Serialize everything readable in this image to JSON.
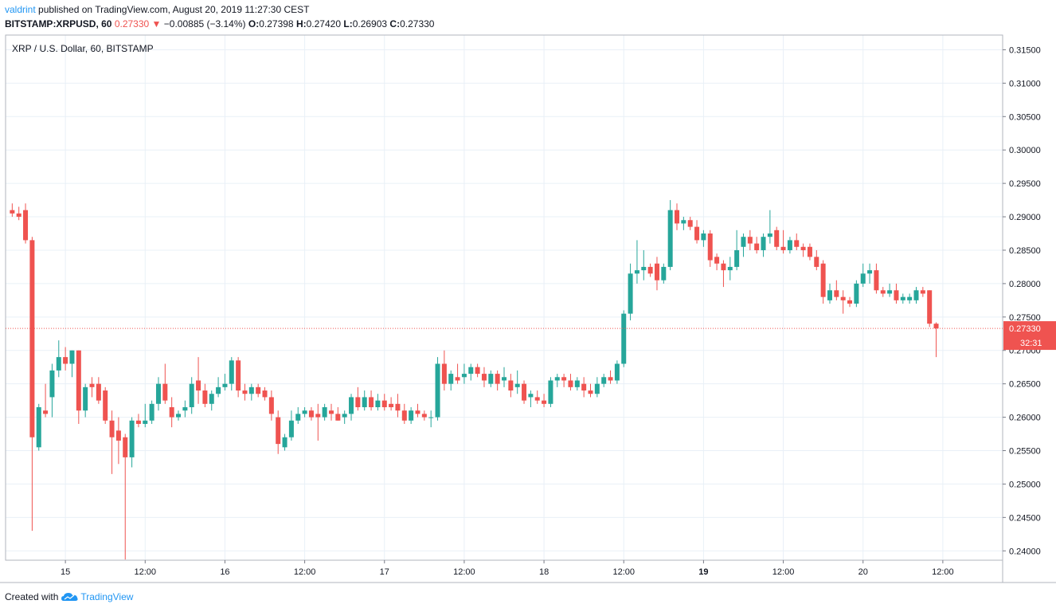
{
  "header": {
    "author": "valdrint",
    "published_text": "published on TradingView.com, August 20, 2019 11:27:30 CEST",
    "symbol": "BITSTAMP:XRPUSD, 60",
    "last": "0.27330",
    "change": "−0.00885 (−3.14%)",
    "o_label": "O:",
    "o_value": "0.27398",
    "h_label": "H:",
    "h_value": "0.27420",
    "l_label": "L:",
    "l_value": "0.26903",
    "c_label": "C:",
    "c_value": "0.27330"
  },
  "footer": {
    "created_with": "Created with",
    "brand": "TradingView"
  },
  "colors": {
    "up": "#26a69a",
    "down": "#ef5350",
    "grid": "#e9f0f7",
    "text": "#131722"
  },
  "chart_data": {
    "type": "candlestick",
    "title": "XRP / U.S. Dollar, 60, BITSTAMP",
    "y_ticks": [
      "0.24000",
      "0.24500",
      "0.25000",
      "0.25500",
      "0.26000",
      "0.26500",
      "0.27000",
      "0.27500",
      "0.28000",
      "0.28500",
      "0.29000",
      "0.29500",
      "0.30000",
      "0.30500",
      "0.31000",
      "0.31500"
    ],
    "ylim": [
      0.2386,
      0.3172
    ],
    "x_ticks": [
      {
        "label": "15",
        "t": 0,
        "bold": false
      },
      {
        "label": "12:00",
        "t": 12,
        "bold": false
      },
      {
        "label": "16",
        "t": 24,
        "bold": false
      },
      {
        "label": "12:00",
        "t": 36,
        "bold": false
      },
      {
        "label": "17",
        "t": 48,
        "bold": false
      },
      {
        "label": "12:00",
        "t": 60,
        "bold": false
      },
      {
        "label": "18",
        "t": 72,
        "bold": false
      },
      {
        "label": "12:00",
        "t": 84,
        "bold": false
      },
      {
        "label": "19",
        "t": 96,
        "bold": true
      },
      {
        "label": "12:00",
        "t": 108,
        "bold": false
      },
      {
        "label": "20",
        "t": 120,
        "bold": false
      },
      {
        "label": "12:00",
        "t": 132,
        "bold": false
      }
    ],
    "xlim": [
      -9,
      141
    ],
    "last_price_label": "0.27330",
    "last_price": 0.2733,
    "countdown": "32:31",
    "candles": [
      {
        "t": -8,
        "o": 0.291,
        "h": 0.292,
        "l": 0.29,
        "c": 0.2905
      },
      {
        "t": -7,
        "o": 0.2905,
        "h": 0.2915,
        "l": 0.2895,
        "c": 0.29
      },
      {
        "t": -6,
        "o": 0.291,
        "h": 0.292,
        "l": 0.286,
        "c": 0.2865
      },
      {
        "t": -5,
        "o": 0.2865,
        "h": 0.287,
        "l": 0.243,
        "c": 0.257
      },
      {
        "t": -4,
        "o": 0.2555,
        "h": 0.262,
        "l": 0.255,
        "c": 0.2615
      },
      {
        "t": -3,
        "o": 0.261,
        "h": 0.265,
        "l": 0.26,
        "c": 0.2605
      },
      {
        "t": -2,
        "o": 0.263,
        "h": 0.268,
        "l": 0.26,
        "c": 0.267
      },
      {
        "t": -1,
        "o": 0.267,
        "h": 0.2715,
        "l": 0.266,
        "c": 0.269
      },
      {
        "t": 0,
        "o": 0.269,
        "h": 0.2705,
        "l": 0.267,
        "c": 0.268
      },
      {
        "t": 1,
        "o": 0.268,
        "h": 0.27,
        "l": 0.266,
        "c": 0.27
      },
      {
        "t": 2,
        "o": 0.27,
        "h": 0.27,
        "l": 0.259,
        "c": 0.261
      },
      {
        "t": 3,
        "o": 0.261,
        "h": 0.265,
        "l": 0.26,
        "c": 0.2645
      },
      {
        "t": 4,
        "o": 0.265,
        "h": 0.266,
        "l": 0.263,
        "c": 0.2645
      },
      {
        "t": 5,
        "o": 0.265,
        "h": 0.266,
        "l": 0.262,
        "c": 0.2625
      },
      {
        "t": 6,
        "o": 0.264,
        "h": 0.2645,
        "l": 0.259,
        "c": 0.2595
      },
      {
        "t": 7,
        "o": 0.2595,
        "h": 0.261,
        "l": 0.2515,
        "c": 0.257
      },
      {
        "t": 8,
        "o": 0.258,
        "h": 0.26,
        "l": 0.253,
        "c": 0.2565
      },
      {
        "t": 9,
        "o": 0.257,
        "h": 0.2575,
        "l": 0.2387,
        "c": 0.254
      },
      {
        "t": 10,
        "o": 0.254,
        "h": 0.26,
        "l": 0.2525,
        "c": 0.2595
      },
      {
        "t": 11,
        "o": 0.2595,
        "h": 0.2605,
        "l": 0.2585,
        "c": 0.259
      },
      {
        "t": 12,
        "o": 0.259,
        "h": 0.262,
        "l": 0.2585,
        "c": 0.2595
      },
      {
        "t": 13,
        "o": 0.2595,
        "h": 0.2625,
        "l": 0.259,
        "c": 0.262
      },
      {
        "t": 14,
        "o": 0.262,
        "h": 0.266,
        "l": 0.261,
        "c": 0.265
      },
      {
        "t": 15,
        "o": 0.265,
        "h": 0.268,
        "l": 0.262,
        "c": 0.2625
      },
      {
        "t": 16,
        "o": 0.2615,
        "h": 0.263,
        "l": 0.2585,
        "c": 0.26
      },
      {
        "t": 17,
        "o": 0.26,
        "h": 0.261,
        "l": 0.2595,
        "c": 0.2605
      },
      {
        "t": 18,
        "o": 0.261,
        "h": 0.2625,
        "l": 0.26,
        "c": 0.2615
      },
      {
        "t": 19,
        "o": 0.2615,
        "h": 0.266,
        "l": 0.2605,
        "c": 0.265
      },
      {
        "t": 20,
        "o": 0.2655,
        "h": 0.269,
        "l": 0.262,
        "c": 0.264
      },
      {
        "t": 21,
        "o": 0.264,
        "h": 0.265,
        "l": 0.2615,
        "c": 0.262
      },
      {
        "t": 22,
        "o": 0.262,
        "h": 0.264,
        "l": 0.261,
        "c": 0.2635
      },
      {
        "t": 23,
        "o": 0.2635,
        "h": 0.266,
        "l": 0.263,
        "c": 0.2645
      },
      {
        "t": 24,
        "o": 0.2645,
        "h": 0.2665,
        "l": 0.264,
        "c": 0.265
      },
      {
        "t": 25,
        "o": 0.265,
        "h": 0.269,
        "l": 0.264,
        "c": 0.2685
      },
      {
        "t": 26,
        "o": 0.2685,
        "h": 0.269,
        "l": 0.263,
        "c": 0.264
      },
      {
        "t": 27,
        "o": 0.264,
        "h": 0.265,
        "l": 0.2625,
        "c": 0.2635
      },
      {
        "t": 28,
        "o": 0.2635,
        "h": 0.265,
        "l": 0.2625,
        "c": 0.2645
      },
      {
        "t": 29,
        "o": 0.2645,
        "h": 0.265,
        "l": 0.263,
        "c": 0.2635
      },
      {
        "t": 30,
        "o": 0.264,
        "h": 0.2645,
        "l": 0.2625,
        "c": 0.263
      },
      {
        "t": 31,
        "o": 0.263,
        "h": 0.264,
        "l": 0.2595,
        "c": 0.2605
      },
      {
        "t": 32,
        "o": 0.26,
        "h": 0.261,
        "l": 0.2545,
        "c": 0.256
      },
      {
        "t": 33,
        "o": 0.2555,
        "h": 0.2575,
        "l": 0.255,
        "c": 0.257
      },
      {
        "t": 34,
        "o": 0.257,
        "h": 0.261,
        "l": 0.2565,
        "c": 0.2595
      },
      {
        "t": 35,
        "o": 0.2595,
        "h": 0.2615,
        "l": 0.259,
        "c": 0.2605
      },
      {
        "t": 36,
        "o": 0.2605,
        "h": 0.2615,
        "l": 0.26,
        "c": 0.261
      },
      {
        "t": 37,
        "o": 0.261,
        "h": 0.2615,
        "l": 0.2595,
        "c": 0.26
      },
      {
        "t": 38,
        "o": 0.2605,
        "h": 0.262,
        "l": 0.2565,
        "c": 0.26
      },
      {
        "t": 39,
        "o": 0.26,
        "h": 0.262,
        "l": 0.2595,
        "c": 0.2615
      },
      {
        "t": 40,
        "o": 0.261,
        "h": 0.262,
        "l": 0.2595,
        "c": 0.2605
      },
      {
        "t": 41,
        "o": 0.2605,
        "h": 0.2615,
        "l": 0.2595,
        "c": 0.2595
      },
      {
        "t": 42,
        "o": 0.26,
        "h": 0.261,
        "l": 0.259,
        "c": 0.2605
      },
      {
        "t": 43,
        "o": 0.2605,
        "h": 0.2635,
        "l": 0.2595,
        "c": 0.263
      },
      {
        "t": 44,
        "o": 0.263,
        "h": 0.2645,
        "l": 0.261,
        "c": 0.2615
      },
      {
        "t": 45,
        "o": 0.2615,
        "h": 0.264,
        "l": 0.261,
        "c": 0.263
      },
      {
        "t": 46,
        "o": 0.263,
        "h": 0.264,
        "l": 0.261,
        "c": 0.2615
      },
      {
        "t": 47,
        "o": 0.2615,
        "h": 0.2635,
        "l": 0.261,
        "c": 0.2625
      },
      {
        "t": 48,
        "o": 0.2625,
        "h": 0.2635,
        "l": 0.261,
        "c": 0.2615
      },
      {
        "t": 49,
        "o": 0.262,
        "h": 0.263,
        "l": 0.261,
        "c": 0.2615
      },
      {
        "t": 50,
        "o": 0.262,
        "h": 0.2635,
        "l": 0.26,
        "c": 0.261
      },
      {
        "t": 51,
        "o": 0.261,
        "h": 0.262,
        "l": 0.259,
        "c": 0.2595
      },
      {
        "t": 52,
        "o": 0.2595,
        "h": 0.2615,
        "l": 0.259,
        "c": 0.261
      },
      {
        "t": 53,
        "o": 0.261,
        "h": 0.262,
        "l": 0.26,
        "c": 0.2605
      },
      {
        "t": 54,
        "o": 0.2605,
        "h": 0.261,
        "l": 0.2595,
        "c": 0.26
      },
      {
        "t": 55,
        "o": 0.26,
        "h": 0.261,
        "l": 0.2585,
        "c": 0.26
      },
      {
        "t": 56,
        "o": 0.26,
        "h": 0.269,
        "l": 0.2595,
        "c": 0.268
      },
      {
        "t": 57,
        "o": 0.268,
        "h": 0.27,
        "l": 0.264,
        "c": 0.265
      },
      {
        "t": 58,
        "o": 0.265,
        "h": 0.267,
        "l": 0.264,
        "c": 0.2665
      },
      {
        "t": 59,
        "o": 0.266,
        "h": 0.268,
        "l": 0.265,
        "c": 0.2655
      },
      {
        "t": 60,
        "o": 0.266,
        "h": 0.268,
        "l": 0.265,
        "c": 0.2665
      },
      {
        "t": 61,
        "o": 0.2665,
        "h": 0.268,
        "l": 0.2655,
        "c": 0.2675
      },
      {
        "t": 62,
        "o": 0.2675,
        "h": 0.268,
        "l": 0.266,
        "c": 0.2665
      },
      {
        "t": 63,
        "o": 0.2665,
        "h": 0.2675,
        "l": 0.2645,
        "c": 0.2655
      },
      {
        "t": 64,
        "o": 0.265,
        "h": 0.267,
        "l": 0.2645,
        "c": 0.2665
      },
      {
        "t": 65,
        "o": 0.2665,
        "h": 0.267,
        "l": 0.264,
        "c": 0.265
      },
      {
        "t": 66,
        "o": 0.2655,
        "h": 0.2675,
        "l": 0.2645,
        "c": 0.266
      },
      {
        "t": 67,
        "o": 0.2655,
        "h": 0.2665,
        "l": 0.263,
        "c": 0.264
      },
      {
        "t": 68,
        "o": 0.2645,
        "h": 0.267,
        "l": 0.2635,
        "c": 0.265
      },
      {
        "t": 69,
        "o": 0.265,
        "h": 0.2655,
        "l": 0.262,
        "c": 0.2625
      },
      {
        "t": 70,
        "o": 0.263,
        "h": 0.264,
        "l": 0.2615,
        "c": 0.2635
      },
      {
        "t": 71,
        "o": 0.263,
        "h": 0.264,
        "l": 0.262,
        "c": 0.2625
      },
      {
        "t": 72,
        "o": 0.2625,
        "h": 0.2635,
        "l": 0.2615,
        "c": 0.262
      },
      {
        "t": 73,
        "o": 0.262,
        "h": 0.266,
        "l": 0.2615,
        "c": 0.2655
      },
      {
        "t": 74,
        "o": 0.2655,
        "h": 0.2665,
        "l": 0.2645,
        "c": 0.266
      },
      {
        "t": 75,
        "o": 0.266,
        "h": 0.2665,
        "l": 0.2645,
        "c": 0.2655
      },
      {
        "t": 76,
        "o": 0.2655,
        "h": 0.2665,
        "l": 0.264,
        "c": 0.2645
      },
      {
        "t": 77,
        "o": 0.2645,
        "h": 0.266,
        "l": 0.264,
        "c": 0.2655
      },
      {
        "t": 78,
        "o": 0.265,
        "h": 0.266,
        "l": 0.263,
        "c": 0.264
      },
      {
        "t": 79,
        "o": 0.264,
        "h": 0.265,
        "l": 0.263,
        "c": 0.2635
      },
      {
        "t": 80,
        "o": 0.2635,
        "h": 0.266,
        "l": 0.263,
        "c": 0.265
      },
      {
        "t": 81,
        "o": 0.265,
        "h": 0.2665,
        "l": 0.2645,
        "c": 0.266
      },
      {
        "t": 82,
        "o": 0.266,
        "h": 0.267,
        "l": 0.265,
        "c": 0.2655
      },
      {
        "t": 83,
        "o": 0.2655,
        "h": 0.2685,
        "l": 0.265,
        "c": 0.268
      },
      {
        "t": 84,
        "o": 0.268,
        "h": 0.276,
        "l": 0.2675,
        "c": 0.2755
      },
      {
        "t": 85,
        "o": 0.2755,
        "h": 0.283,
        "l": 0.2745,
        "c": 0.2815
      },
      {
        "t": 86,
        "o": 0.2815,
        "h": 0.2865,
        "l": 0.28,
        "c": 0.282
      },
      {
        "t": 87,
        "o": 0.282,
        "h": 0.285,
        "l": 0.2805,
        "c": 0.2825
      },
      {
        "t": 88,
        "o": 0.2825,
        "h": 0.283,
        "l": 0.281,
        "c": 0.2815
      },
      {
        "t": 89,
        "o": 0.283,
        "h": 0.284,
        "l": 0.279,
        "c": 0.2805
      },
      {
        "t": 90,
        "o": 0.2805,
        "h": 0.283,
        "l": 0.28,
        "c": 0.2825
      },
      {
        "t": 91,
        "o": 0.2825,
        "h": 0.2925,
        "l": 0.282,
        "c": 0.291
      },
      {
        "t": 92,
        "o": 0.291,
        "h": 0.292,
        "l": 0.288,
        "c": 0.289
      },
      {
        "t": 93,
        "o": 0.289,
        "h": 0.29,
        "l": 0.288,
        "c": 0.2895
      },
      {
        "t": 94,
        "o": 0.2895,
        "h": 0.29,
        "l": 0.288,
        "c": 0.2885
      },
      {
        "t": 95,
        "o": 0.2885,
        "h": 0.2895,
        "l": 0.286,
        "c": 0.2865
      },
      {
        "t": 96,
        "o": 0.2865,
        "h": 0.288,
        "l": 0.2855,
        "c": 0.2875
      },
      {
        "t": 97,
        "o": 0.2875,
        "h": 0.288,
        "l": 0.2825,
        "c": 0.2835
      },
      {
        "t": 98,
        "o": 0.284,
        "h": 0.2845,
        "l": 0.282,
        "c": 0.283
      },
      {
        "t": 99,
        "o": 0.283,
        "h": 0.2835,
        "l": 0.2795,
        "c": 0.282
      },
      {
        "t": 100,
        "o": 0.282,
        "h": 0.284,
        "l": 0.2805,
        "c": 0.2825
      },
      {
        "t": 101,
        "o": 0.2825,
        "h": 0.288,
        "l": 0.282,
        "c": 0.285
      },
      {
        "t": 102,
        "o": 0.2855,
        "h": 0.2875,
        "l": 0.284,
        "c": 0.287
      },
      {
        "t": 103,
        "o": 0.287,
        "h": 0.288,
        "l": 0.285,
        "c": 0.286
      },
      {
        "t": 104,
        "o": 0.286,
        "h": 0.287,
        "l": 0.2845,
        "c": 0.285
      },
      {
        "t": 105,
        "o": 0.285,
        "h": 0.2875,
        "l": 0.284,
        "c": 0.287
      },
      {
        "t": 106,
        "o": 0.287,
        "h": 0.291,
        "l": 0.286,
        "c": 0.2875
      },
      {
        "t": 107,
        "o": 0.288,
        "h": 0.2885,
        "l": 0.285,
        "c": 0.2855
      },
      {
        "t": 108,
        "o": 0.2855,
        "h": 0.288,
        "l": 0.2845,
        "c": 0.285
      },
      {
        "t": 109,
        "o": 0.285,
        "h": 0.287,
        "l": 0.2845,
        "c": 0.2865
      },
      {
        "t": 110,
        "o": 0.2865,
        "h": 0.2875,
        "l": 0.285,
        "c": 0.2855
      },
      {
        "t": 111,
        "o": 0.2855,
        "h": 0.286,
        "l": 0.284,
        "c": 0.285
      },
      {
        "t": 112,
        "o": 0.2855,
        "h": 0.286,
        "l": 0.2835,
        "c": 0.284
      },
      {
        "t": 113,
        "o": 0.284,
        "h": 0.285,
        "l": 0.282,
        "c": 0.2825
      },
      {
        "t": 114,
        "o": 0.283,
        "h": 0.2835,
        "l": 0.277,
        "c": 0.278
      },
      {
        "t": 115,
        "o": 0.2775,
        "h": 0.28,
        "l": 0.277,
        "c": 0.279
      },
      {
        "t": 116,
        "o": 0.279,
        "h": 0.2805,
        "l": 0.2775,
        "c": 0.278
      },
      {
        "t": 117,
        "o": 0.278,
        "h": 0.279,
        "l": 0.2755,
        "c": 0.2775
      },
      {
        "t": 118,
        "o": 0.2775,
        "h": 0.278,
        "l": 0.2765,
        "c": 0.277
      },
      {
        "t": 119,
        "o": 0.277,
        "h": 0.2805,
        "l": 0.2765,
        "c": 0.28
      },
      {
        "t": 120,
        "o": 0.28,
        "h": 0.283,
        "l": 0.2795,
        "c": 0.2815
      },
      {
        "t": 121,
        "o": 0.2815,
        "h": 0.283,
        "l": 0.28,
        "c": 0.282
      },
      {
        "t": 122,
        "o": 0.282,
        "h": 0.283,
        "l": 0.2785,
        "c": 0.279
      },
      {
        "t": 123,
        "o": 0.279,
        "h": 0.2795,
        "l": 0.278,
        "c": 0.2785
      },
      {
        "t": 124,
        "o": 0.2785,
        "h": 0.28,
        "l": 0.278,
        "c": 0.279
      },
      {
        "t": 125,
        "o": 0.279,
        "h": 0.28,
        "l": 0.277,
        "c": 0.2775
      },
      {
        "t": 126,
        "o": 0.2775,
        "h": 0.2785,
        "l": 0.277,
        "c": 0.278
      },
      {
        "t": 127,
        "o": 0.2775,
        "h": 0.2785,
        "l": 0.277,
        "c": 0.278
      },
      {
        "t": 128,
        "o": 0.2775,
        "h": 0.2795,
        "l": 0.277,
        "c": 0.279
      },
      {
        "t": 129,
        "o": 0.279,
        "h": 0.2795,
        "l": 0.278,
        "c": 0.2785
      },
      {
        "t": 130,
        "o": 0.279,
        "h": 0.279,
        "l": 0.2735,
        "c": 0.274
      },
      {
        "t": 131,
        "o": 0.274,
        "h": 0.2742,
        "l": 0.269,
        "c": 0.2733
      }
    ]
  }
}
